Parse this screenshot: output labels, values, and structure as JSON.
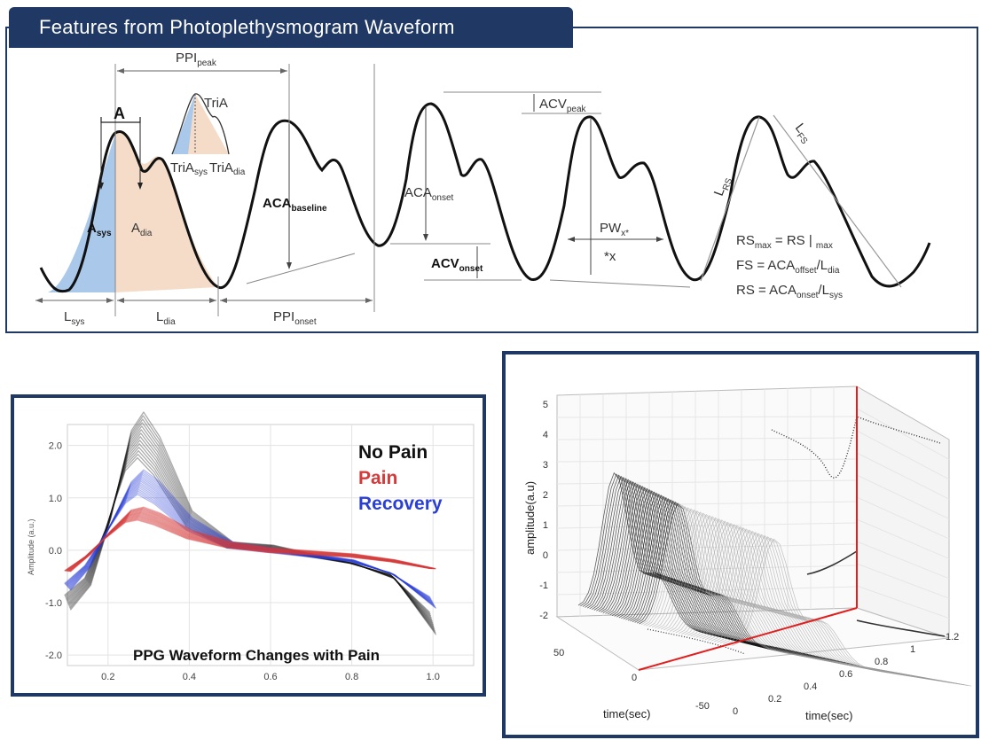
{
  "header": {
    "title": "Features from Photoplethysmogram Waveform"
  },
  "feature_diagram": {
    "labels": {
      "ppi_peak": "PPI",
      "ppi_peak_sub": "peak",
      "A": "A",
      "tri_a": "TriA",
      "tri_a_sys": "TriA",
      "tri_a_sys_sub": "sys",
      "tri_a_dia": "TriA",
      "tri_a_dia_sub": "dia",
      "a_sys": "A",
      "a_sys_sub": "sys",
      "a_dia": "A",
      "a_dia_sub": "dia",
      "aca_baseline": "ACA",
      "aca_baseline_sub": "baseline",
      "aca_onset": "ACA",
      "aca_onset_sub": "onset",
      "acv_peak": "ACV",
      "acv_peak_sub": "peak",
      "acv_onset": "ACV",
      "acv_onset_sub": "onset",
      "pw_x": "PW",
      "pw_x_sub": "x*",
      "x_mark": "*x",
      "l_rs": "L",
      "l_rs_sub": "RS",
      "l_fs": "L",
      "l_fs_sub": "FS",
      "l_sys": "L",
      "l_sys_sub": "sys",
      "l_dia": "L",
      "l_dia_sub": "dia",
      "ppi_onset": "PPI",
      "ppi_onset_sub": "onset"
    },
    "formulas": {
      "rs_max": {
        "a": "RS",
        "a_sub": "max",
        "b": " = RS | ",
        "b_sub": "max"
      },
      "fs": {
        "a": "FS = ACA",
        "a_sub": "offset",
        "b": "/L",
        "b_sub": "dia"
      },
      "rs": {
        "a": "RS = ACA",
        "a_sub": "onset",
        "b": "/L",
        "b_sub": "sys"
      }
    },
    "colors": {
      "systolic_fill": "#a9c8ea",
      "diastolic_fill": "#f5dcc8",
      "frame": "#1f3864"
    }
  },
  "pain_chart": {
    "title": "PPG Waveform Changes with Pain",
    "ylabel": "Amplitude (a.u.)",
    "yticks": [
      "2.0",
      "1.0",
      "0.0",
      "-1.0",
      "-2.0"
    ],
    "xticks": [
      "0.2",
      "0.4",
      "0.6",
      "0.8",
      "1.0"
    ],
    "legend": [
      {
        "name": "No Pain",
        "color": "#111111"
      },
      {
        "name": "Pain",
        "color": "#d43a3a"
      },
      {
        "name": "Recovery",
        "color": "#2a3fd6"
      }
    ]
  },
  "surface_chart": {
    "zlabel": "amplitude(a.u)",
    "xlabel_left": "time(sec)",
    "xlabel_right": "time(sec)",
    "zticks": [
      "5",
      "4",
      "3",
      "2",
      "1",
      "0",
      "-1",
      "-2"
    ],
    "left_ticks": [
      "50",
      "0",
      "-50"
    ],
    "right_ticks": [
      "0",
      "0.2",
      "0.4",
      "0.6",
      "0.8",
      "1",
      "1.2"
    ],
    "marker_color": "#e01f1f"
  },
  "chart_data": [
    {
      "type": "line",
      "title": "PPG Waveform Changes with Pain",
      "xlabel": "",
      "ylabel": "Amplitude (a.u.)",
      "xlim": [
        0.1,
        1.1
      ],
      "ylim": [
        -2.2,
        2.4
      ],
      "series": [
        {
          "name": "No Pain",
          "x": [
            0.1,
            0.15,
            0.2,
            0.25,
            0.28,
            0.32,
            0.4,
            0.5,
            0.6,
            0.7,
            0.8,
            0.9,
            1.0
          ],
          "y": [
            -1.0,
            -0.6,
            0.5,
            1.9,
            2.2,
            1.8,
            0.6,
            0.1,
            0.05,
            -0.1,
            -0.25,
            -0.5,
            -1.4
          ]
        },
        {
          "name": "Pain",
          "x": [
            0.1,
            0.15,
            0.2,
            0.25,
            0.28,
            0.32,
            0.4,
            0.5,
            0.6,
            0.7,
            0.8,
            0.9,
            1.0
          ],
          "y": [
            -0.4,
            -0.1,
            0.3,
            0.65,
            0.7,
            0.6,
            0.3,
            0.1,
            0.0,
            -0.05,
            -0.1,
            -0.2,
            -0.35
          ]
        },
        {
          "name": "Recovery",
          "x": [
            0.1,
            0.15,
            0.2,
            0.25,
            0.28,
            0.32,
            0.4,
            0.5,
            0.6,
            0.7,
            0.8,
            0.9,
            1.0
          ],
          "y": [
            -0.7,
            -0.3,
            0.4,
            1.1,
            1.3,
            1.1,
            0.5,
            0.1,
            0.0,
            -0.1,
            -0.2,
            -0.45,
            -1.0
          ]
        }
      ]
    }
  ]
}
